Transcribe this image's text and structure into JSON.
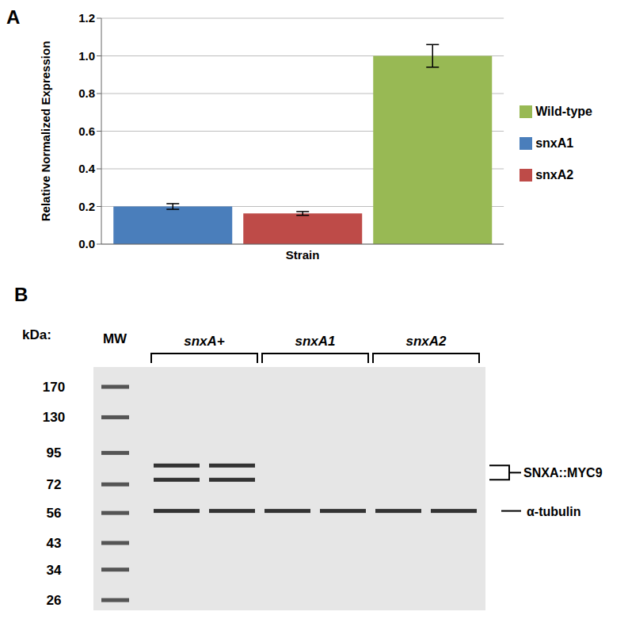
{
  "chart_data": {
    "type": "bar",
    "categories": [
      "Strain"
    ],
    "y_label": "Relative Normalized Expression",
    "ylim": [
      0,
      1.2
    ],
    "yticks": [
      {
        "value": 0,
        "label": "0.0"
      },
      {
        "value": 0.2,
        "label": "0.2"
      },
      {
        "value": 0.4,
        "label": "0.4"
      },
      {
        "value": 0.6,
        "label": "0.6"
      },
      {
        "value": 0.8,
        "label": "0.8"
      },
      {
        "value": 1.0,
        "label": "1.0"
      },
      {
        "value": 1.2,
        "label": "1.2"
      }
    ],
    "grid": true,
    "legend": "right",
    "series": [
      {
        "name": "snxA1",
        "color": "#4a7ebb",
        "values": [
          0.2
        ],
        "errors": [
          0.015
        ]
      },
      {
        "name": "snxA2",
        "color": "#be4b48",
        "values": [
          0.163
        ],
        "errors": [
          0.01
        ]
      },
      {
        "name": "Wild-type",
        "color": "#98b954",
        "values": [
          1.0
        ],
        "errors": [
          0.06
        ]
      }
    ]
  },
  "panel_labels": [
    "A",
    "B"
  ],
  "blot": {
    "kda_label": "kDa:",
    "ladder_label": "MW",
    "markers": [
      170,
      130,
      95,
      72,
      56,
      43,
      34,
      26
    ],
    "groups": [
      {
        "label": "snxA+",
        "lanes": 2
      },
      {
        "label": "snxA1",
        "lanes": 2
      },
      {
        "label": "snxA2",
        "lanes": 2
      }
    ],
    "bands": [
      {
        "label": "SNXA::MYC9",
        "kda": [
          85,
          75
        ],
        "lanes": [
          0,
          1
        ]
      },
      {
        "label": "α-tubulin",
        "kda": [
          57
        ],
        "lanes": [
          0,
          1,
          2,
          3,
          4,
          5
        ]
      }
    ]
  }
}
